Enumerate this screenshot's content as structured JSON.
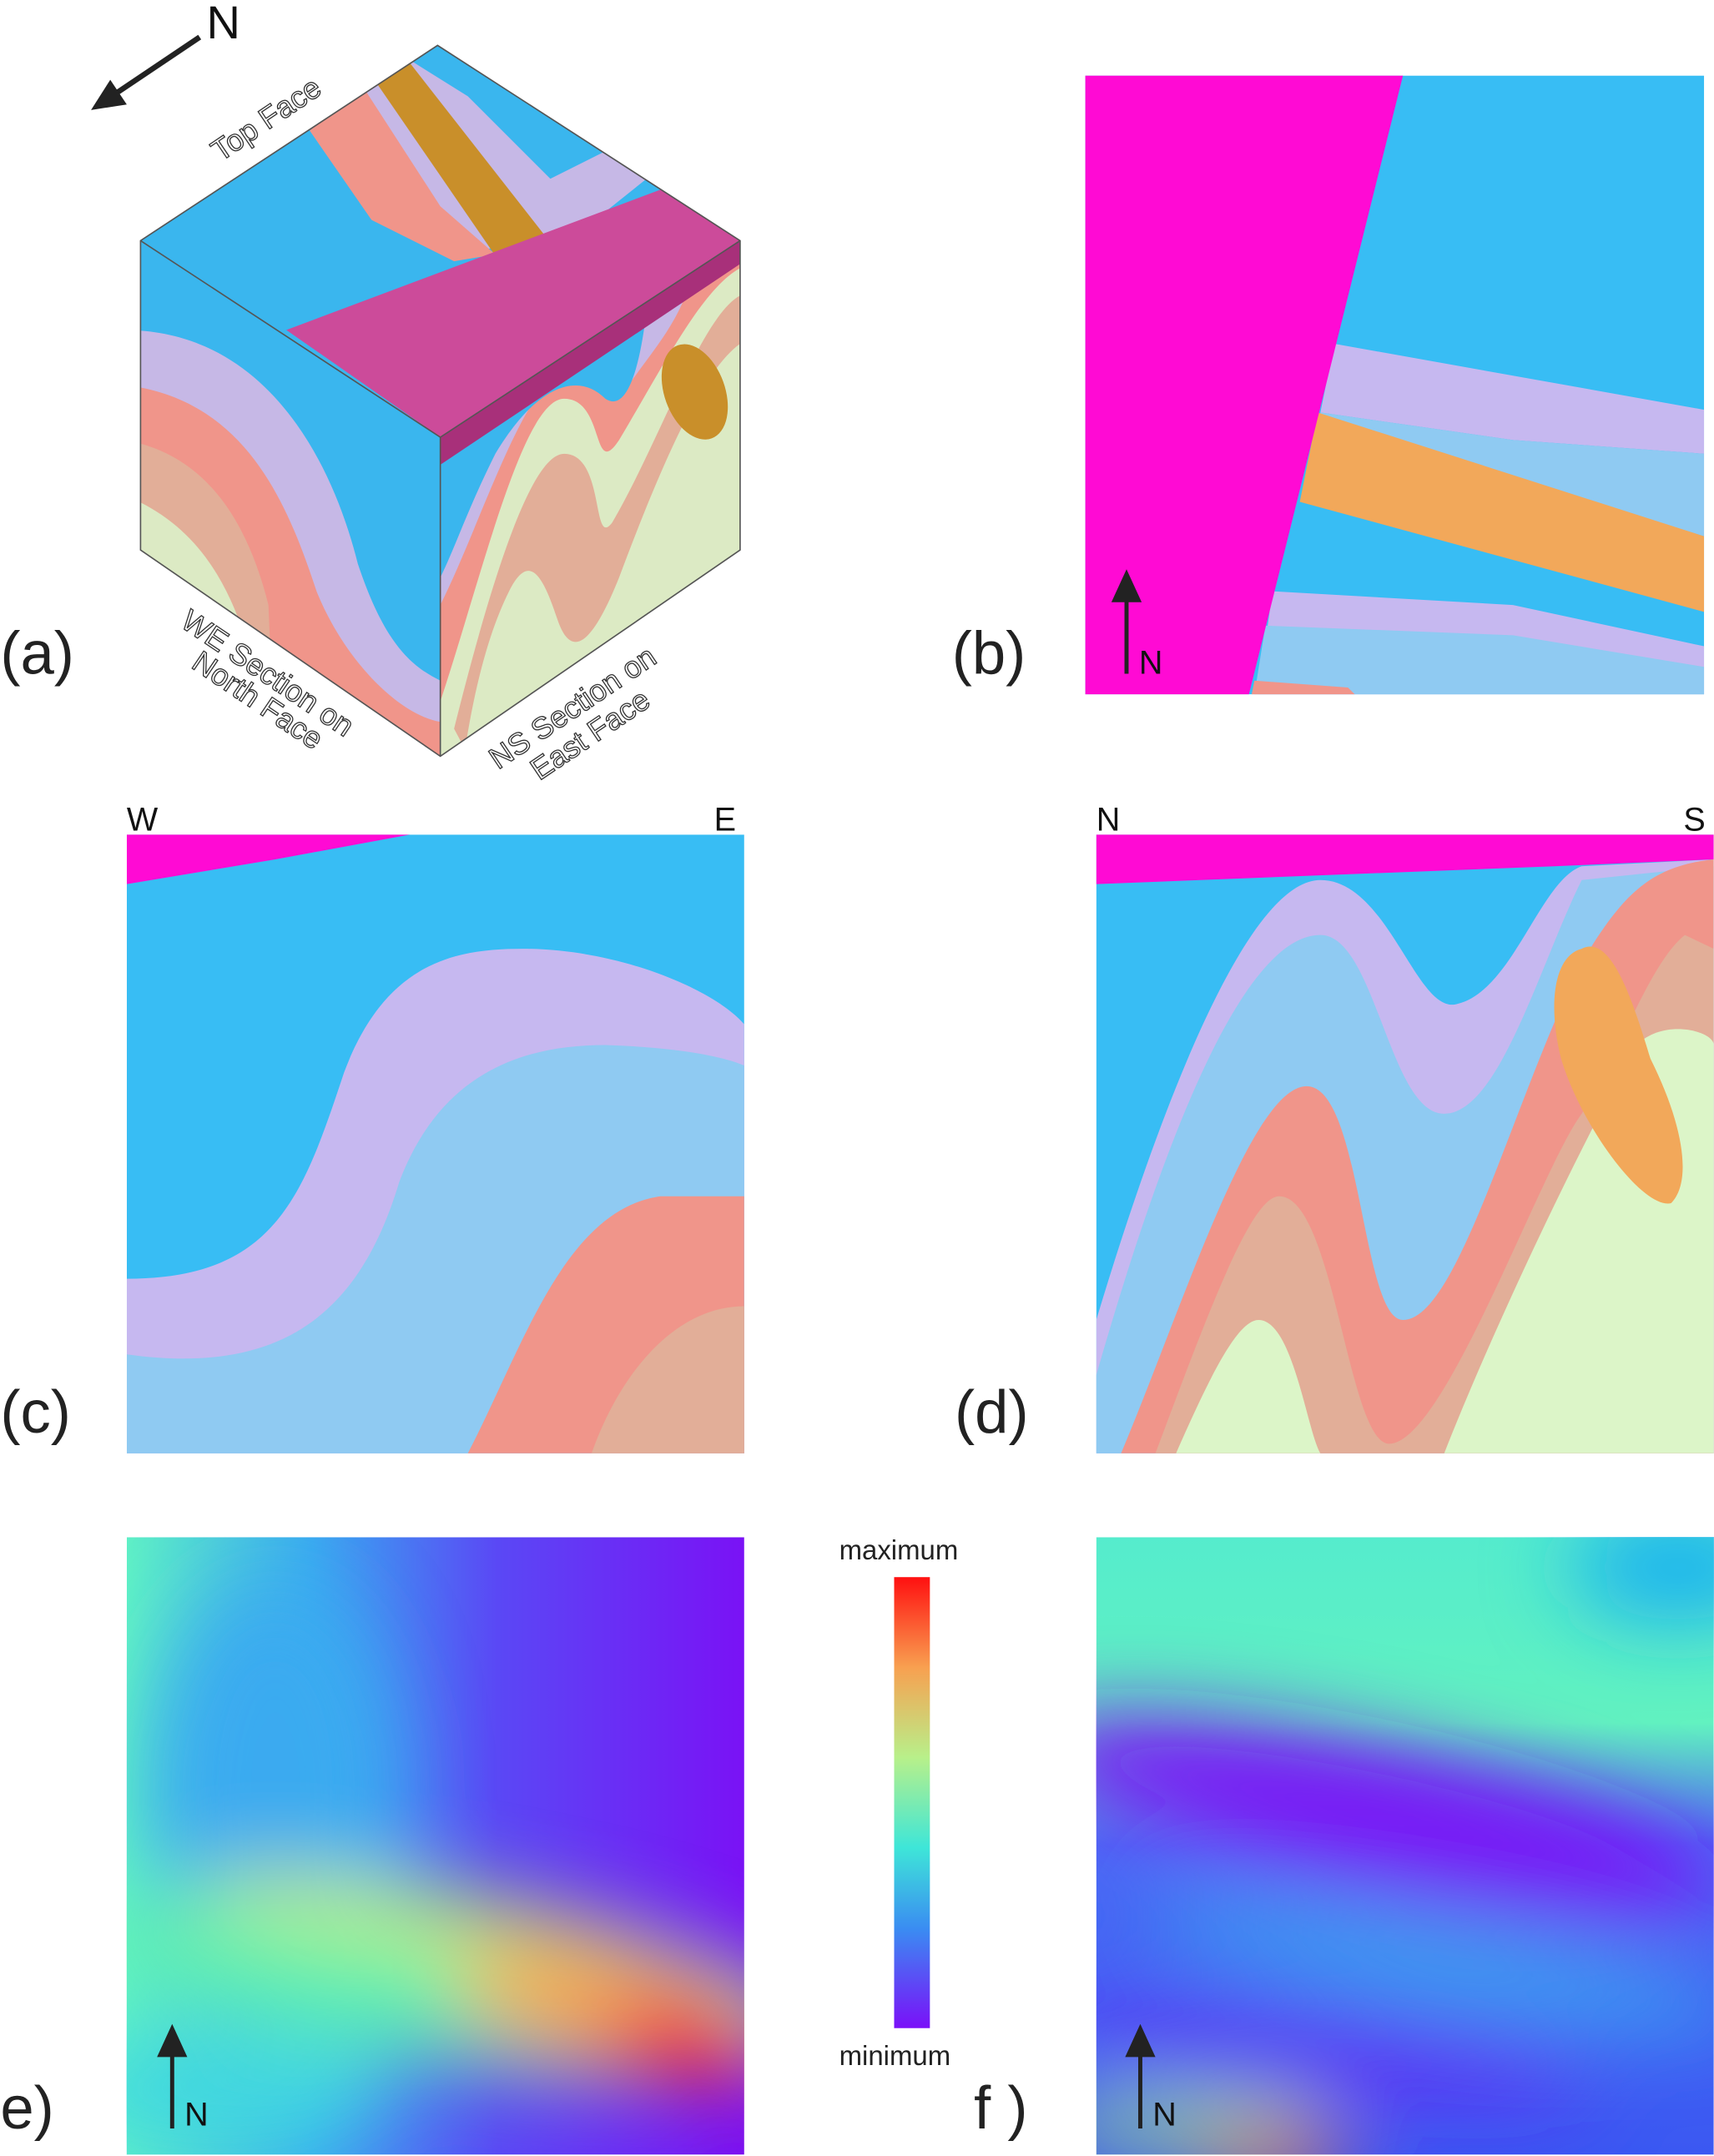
{
  "panel_a": {
    "label": "(a)",
    "north": "N",
    "top_face": "Top Face",
    "north_face_lines": [
      "WE Section on",
      "North Face"
    ],
    "east_face_lines": [
      "NS Section on",
      "East Face"
    ]
  },
  "panel_b": {
    "label": "(b)",
    "north": "N"
  },
  "panel_c": {
    "label": "(c)",
    "west": "W",
    "east": "E"
  },
  "panel_d": {
    "label": "(d)",
    "north": "N",
    "south": "S"
  },
  "panel_e": {
    "label": "e)",
    "north": "N"
  },
  "panel_f": {
    "label": "f )",
    "north": "N"
  },
  "colorbar": {
    "max_label": "maximum",
    "min_label": "minimum"
  }
}
